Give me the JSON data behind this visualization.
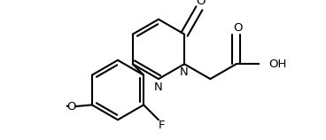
{
  "bg_color": "#ffffff",
  "line_color": "#000000",
  "line_width": 1.5,
  "font_size": 9.5,
  "figsize": [
    3.68,
    1.58
  ],
  "dpi": 100,
  "xlim": [
    -1.0,
    5.5
  ],
  "ylim": [
    -2.8,
    1.8
  ]
}
